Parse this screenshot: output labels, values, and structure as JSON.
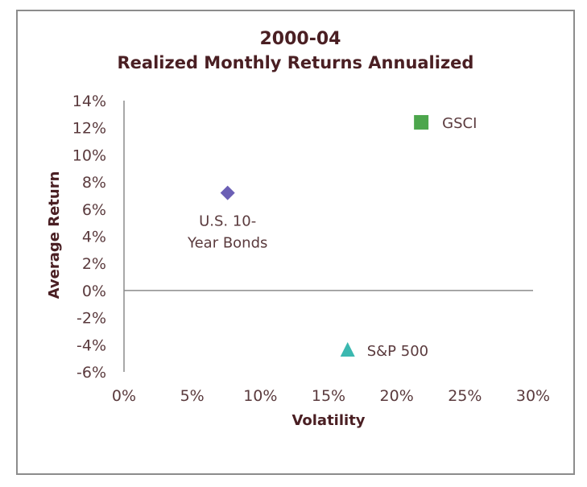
{
  "chart_data": {
    "type": "scatter",
    "title": "2000-04",
    "subtitle": "Realized Monthly Returns Annualized",
    "xlabel": "Volatility",
    "ylabel": "Average Return",
    "xlim": [
      0,
      30
    ],
    "ylim": [
      -6,
      14
    ],
    "x_ticks": [
      0,
      5,
      10,
      15,
      20,
      25,
      30
    ],
    "y_ticks": [
      14,
      12,
      10,
      8,
      6,
      4,
      2,
      0,
      -2,
      -4,
      -6
    ],
    "x_tick_labels": [
      "0%",
      "5%",
      "10%",
      "15%",
      "20%",
      "25%",
      "30%"
    ],
    "y_tick_labels": [
      "14%",
      "12%",
      "10%",
      "8%",
      "6%",
      "4%",
      "2%",
      "0%",
      "-2%",
      "-4%",
      "-6%"
    ],
    "grid": false,
    "legend": "none",
    "points": [
      {
        "label_lines": [
          "U.S. 10-",
          "Year Bonds"
        ],
        "x": 7.6,
        "y": 7.2,
        "marker": "diamond",
        "color": "#6b5fb5"
      },
      {
        "label_lines": [
          "GSCI"
        ],
        "x": 21.8,
        "y": 12.4,
        "marker": "square",
        "color": "#4ca64c"
      },
      {
        "label_lines": [
          "S&P 500"
        ],
        "x": 16.4,
        "y": -4.4,
        "marker": "triangle",
        "color": "#3bb8b0"
      }
    ]
  }
}
